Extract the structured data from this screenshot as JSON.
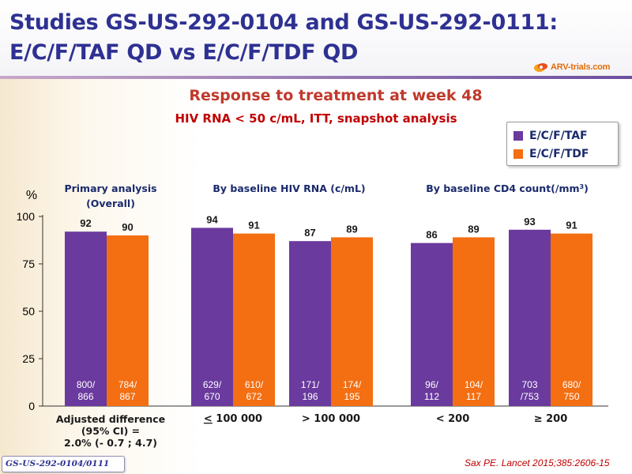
{
  "title_line1": "Studies GS-US-292-0104 and GS-US-292-0111:",
  "title_line2": "E/C/F/TAF QD vs E/C/F/TDF QD",
  "logo_text": "ARV-trials.com",
  "subtitle1": "Response to treatment at week 48",
  "subtitle2": "HIV RNA < 50 c/mL, ITT, snapshot analysis",
  "footer_badge": "GS-US-292-0104/0111",
  "citation": "Sax PE. Lancet 2015;385:2606-15",
  "colors": {
    "taf": "#6a3a9e",
    "tdf": "#f36f12",
    "title": "#2e3192",
    "accent": "#c00000"
  },
  "chart_data": {
    "type": "bar",
    "ylabel": "%",
    "ylim": [
      0,
      100
    ],
    "yticks": [
      0,
      25,
      50,
      75,
      100
    ],
    "series": [
      {
        "name": "E/C/F/TAF",
        "color": "#6a3a9e"
      },
      {
        "name": "E/C/F/TDF",
        "color": "#f36f12"
      }
    ],
    "section_headers": [
      {
        "line1": "Primary analysis",
        "line2": "(Overall)"
      },
      {
        "line1": "By baseline HIV RNA (c/mL)",
        "line2": ""
      },
      {
        "line1": "By baseline CD4 count(/mm",
        "sup": "3",
        "tail": ")",
        "line2": ""
      }
    ],
    "groups": [
      {
        "category": "",
        "values": [
          92,
          90
        ],
        "counts": [
          [
            "800/",
            "866"
          ],
          [
            "784/",
            "867"
          ]
        ],
        "note": [
          "Adjusted difference",
          "(95% CI) =",
          "2.0% (- 0.7 ; 4.7)"
        ]
      },
      {
        "category": "≤ 100 000",
        "values": [
          94,
          91
        ],
        "counts": [
          [
            "629/",
            "670"
          ],
          [
            "610/",
            "672"
          ]
        ]
      },
      {
        "category": "> 100 000",
        "values": [
          87,
          89
        ],
        "counts": [
          [
            "171/",
            "196"
          ],
          [
            "174/",
            "195"
          ]
        ]
      },
      {
        "category": "< 200",
        "values": [
          86,
          89
        ],
        "counts": [
          [
            "96/",
            "112"
          ],
          [
            "104/",
            "117"
          ]
        ]
      },
      {
        "category": "≥ 200",
        "values": [
          93,
          91
        ],
        "counts": [
          [
            "703",
            "/753"
          ],
          [
            "680/",
            "750"
          ]
        ]
      }
    ]
  }
}
